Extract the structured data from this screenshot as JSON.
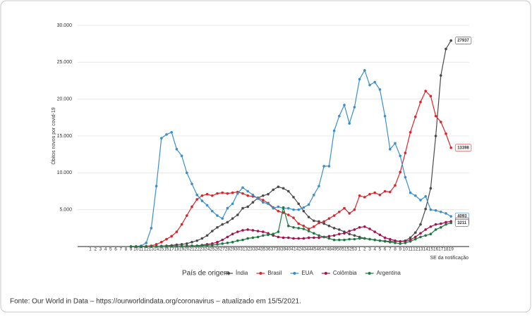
{
  "chart_data": {
    "type": "line",
    "y_label": "Óbitos novos por covid-19",
    "x_label": "SE da notificação",
    "legend_title": "País de origem",
    "footer": "Fonte: Our World in Data – https://ourworldindata.org/coronavirus – atualizado em 15/5/2021.",
    "ylim": [
      0,
      30000
    ],
    "yticks": [
      {
        "value": 5000,
        "label": "5.000"
      },
      {
        "value": 10000,
        "label": "10.000"
      },
      {
        "value": 15000,
        "label": "15.000"
      },
      {
        "value": 20000,
        "label": "20.000"
      },
      {
        "value": 25000,
        "label": "25.000"
      },
      {
        "value": 30000,
        "label": "30.000"
      }
    ],
    "grid": true,
    "categories": [
      "1",
      "2",
      "3",
      "4",
      "5",
      "6",
      "7",
      "8",
      "9",
      "10",
      "11",
      "12",
      "13",
      "14",
      "15",
      "16",
      "17",
      "18",
      "19",
      "20",
      "21",
      "22",
      "23",
      "24",
      "25",
      "26",
      "27",
      "28",
      "29",
      "30",
      "31",
      "32",
      "33",
      "34",
      "35",
      "36",
      "37",
      "38",
      "39",
      "40",
      "41",
      "42",
      "43",
      "44",
      "45",
      "46",
      "47",
      "48",
      "49",
      "50",
      "51",
      "52",
      "53",
      "1",
      "2",
      "3",
      "4",
      "5",
      "6",
      "7",
      "8",
      "9",
      "10",
      "11",
      "12",
      "13",
      "14",
      "15",
      "16",
      "17",
      "18",
      "19"
    ],
    "series": [
      {
        "name": "Índia",
        "color": "#4a4a4a",
        "values": [
          null,
          null,
          null,
          null,
          null,
          null,
          null,
          null,
          0,
          0,
          0,
          10,
          20,
          40,
          70,
          100,
          150,
          250,
          300,
          400,
          600,
          800,
          1100,
          1500,
          2100,
          2600,
          3000,
          3300,
          3800,
          4300,
          5200,
          5400,
          6000,
          6600,
          6900,
          7100,
          7700,
          8100,
          7900,
          7500,
          6700,
          5800,
          4800,
          4000,
          3500,
          3400,
          3100,
          2800,
          2500,
          2300,
          2000,
          1700,
          1500,
          1300,
          1100,
          1000,
          900,
          800,
          750,
          700,
          700,
          700,
          800,
          1200,
          1900,
          3000,
          5100,
          7900,
          15000,
          23200,
          26800,
          27937
        ]
      },
      {
        "name": "Brasil",
        "color": "#d7262b",
        "values": [
          null,
          null,
          null,
          null,
          null,
          null,
          null,
          null,
          0,
          0,
          10,
          50,
          100,
          300,
          600,
          1000,
          1400,
          2000,
          3000,
          4200,
          5400,
          6400,
          6900,
          7100,
          6900,
          7200,
          7300,
          7200,
          7300,
          7400,
          7200,
          6900,
          6800,
          6600,
          6300,
          5900,
          5300,
          4800,
          4600,
          4300,
          3900,
          3100,
          2800,
          2400,
          2700,
          3200,
          3400,
          3800,
          4200,
          4700,
          5200,
          4500,
          5000,
          6900,
          6700,
          7100,
          7300,
          7000,
          7500,
          7400,
          8300,
          10100,
          12700,
          15500,
          17600,
          19600,
          21100,
          20400,
          17700,
          16900,
          15300,
          13398
        ]
      },
      {
        "name": "EUA",
        "color": "#3b8fc9",
        "values": [
          null,
          null,
          null,
          null,
          null,
          null,
          null,
          null,
          0,
          20,
          100,
          500,
          2500,
          8200,
          14700,
          15200,
          15500,
          13200,
          12300,
          10000,
          8500,
          7000,
          6200,
          5600,
          4800,
          4200,
          3800,
          5200,
          5800,
          7200,
          8000,
          7500,
          7000,
          6500,
          6000,
          5800,
          5200,
          5400,
          5200,
          5200,
          5000,
          5000,
          5300,
          5700,
          7000,
          8200,
          10900,
          10900,
          15700,
          17700,
          19200,
          16700,
          18900,
          22700,
          23900,
          21900,
          22300,
          21300,
          17700,
          13200,
          14000,
          12300,
          9400,
          7300,
          6900,
          6300,
          6800,
          5000,
          4900,
          4700,
          4500,
          4093
        ]
      },
      {
        "name": "Colômbia",
        "color": "#a3124f",
        "values": [
          null,
          null,
          null,
          null,
          null,
          null,
          null,
          null,
          0,
          0,
          0,
          0,
          10,
          20,
          30,
          40,
          50,
          60,
          70,
          80,
          100,
          100,
          200,
          300,
          400,
          600,
          900,
          1300,
          1700,
          2000,
          2200,
          2300,
          2200,
          2100,
          2000,
          1800,
          1500,
          1300,
          1200,
          1200,
          1100,
          1100,
          1100,
          1200,
          1200,
          1200,
          1300,
          1400,
          1500,
          1700,
          1800,
          2100,
          2300,
          2600,
          2700,
          2400,
          2000,
          1600,
          1200,
          1000,
          800,
          700,
          700,
          900,
          1300,
          1800,
          2300,
          2700,
          3000,
          3100,
          3300,
          3421
        ]
      },
      {
        "name": "Argentina",
        "color": "#1b7b3e",
        "values": [
          null,
          null,
          null,
          null,
          null,
          null,
          null,
          null,
          0,
          0,
          0,
          0,
          5,
          10,
          15,
          20,
          25,
          30,
          40,
          50,
          80,
          100,
          150,
          180,
          200,
          300,
          400,
          500,
          600,
          800,
          900,
          1100,
          1200,
          1300,
          1500,
          1600,
          1700,
          2000,
          5300,
          2800,
          2600,
          2500,
          2400,
          2100,
          1800,
          1500,
          1300,
          1100,
          900,
          900,
          900,
          1000,
          1000,
          1100,
          1100,
          1000,
          900,
          800,
          700,
          600,
          500,
          400,
          500,
          700,
          1000,
          1300,
          1500,
          1700,
          2300,
          2600,
          3000,
          3211
        ]
      }
    ]
  }
}
